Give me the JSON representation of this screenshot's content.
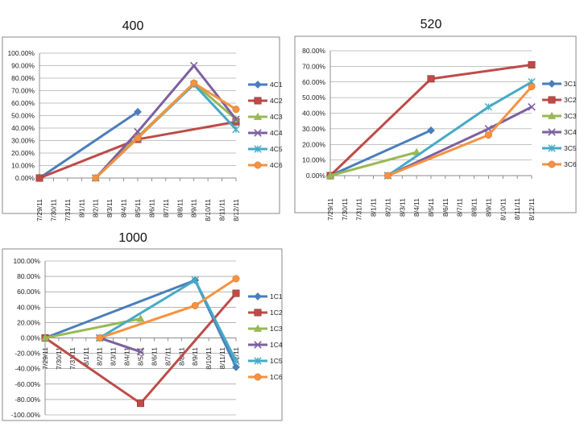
{
  "chart_data": [
    {
      "type": "line",
      "title": "400",
      "categories": [
        "7/29/11",
        "7/30/11",
        "7/31/11",
        "8/1/11",
        "8/2/11",
        "8/3/11",
        "8/4/11",
        "8/5/11",
        "8/6/11",
        "8/7/11",
        "8/8/11",
        "8/9/11",
        "8/10/11",
        "8/11/11",
        "8/12/11"
      ],
      "ylim": [
        0,
        100
      ],
      "ytick_step": 10,
      "ytick_format": "percent2",
      "grid": true,
      "legend_position": "right",
      "series": [
        {
          "name": "4C1",
          "color": "#4a7ebb",
          "marker": "diamond",
          "points": [
            [
              "7/29/11",
              0
            ],
            [
              "8/5/11",
              53
            ]
          ]
        },
        {
          "name": "4C2",
          "color": "#be4b48",
          "marker": "square",
          "points": [
            [
              "7/29/11",
              0
            ],
            [
              "8/5/11",
              31
            ],
            [
              "8/12/11",
              45
            ]
          ]
        },
        {
          "name": "4C3",
          "color": "#98b954",
          "marker": "triangle",
          "points": [
            [
              "8/2/11",
              0
            ],
            [
              "8/5/11",
              33
            ],
            [
              "8/9/11",
              76
            ],
            [
              "8/12/11",
              47
            ]
          ]
        },
        {
          "name": "4C4",
          "color": "#7d60a0",
          "marker": "x",
          "points": [
            [
              "8/2/11",
              0
            ],
            [
              "8/5/11",
              37
            ],
            [
              "8/9/11",
              90
            ],
            [
              "8/12/11",
              47
            ]
          ]
        },
        {
          "name": "4C5",
          "color": "#46aac5",
          "marker": "star",
          "points": [
            [
              "8/2/11",
              0
            ],
            [
              "8/5/11",
              32
            ],
            [
              "8/9/11",
              75
            ],
            [
              "8/12/11",
              39
            ]
          ]
        },
        {
          "name": "4C6",
          "color": "#f69240",
          "marker": "circle",
          "points": [
            [
              "8/2/11",
              0
            ],
            [
              "8/5/11",
              32
            ],
            [
              "8/9/11",
              76
            ],
            [
              "8/12/11",
              55
            ]
          ]
        }
      ]
    },
    {
      "type": "line",
      "title": "520",
      "categories": [
        "7/29/11",
        "7/30/11",
        "7/31/11",
        "8/1/11",
        "8/2/11",
        "8/3/11",
        "8/4/11",
        "8/5/11",
        "8/6/11",
        "8/7/11",
        "8/8/11",
        "8/9/11",
        "8/10/11",
        "8/11/11",
        "8/12/11"
      ],
      "ylim": [
        0,
        80
      ],
      "ytick_step": 10,
      "ytick_format": "percent2",
      "grid": true,
      "legend_position": "right",
      "series": [
        {
          "name": "3C1",
          "color": "#4a7ebb",
          "marker": "diamond",
          "points": [
            [
              "7/29/11",
              0
            ],
            [
              "8/5/11",
              29
            ]
          ]
        },
        {
          "name": "3C2",
          "color": "#be4b48",
          "marker": "square",
          "points": [
            [
              "7/29/11",
              0
            ],
            [
              "8/5/11",
              62
            ],
            [
              "8/12/11",
              71
            ]
          ]
        },
        {
          "name": "3C3",
          "color": "#98b954",
          "marker": "triangle",
          "points": [
            [
              "7/29/11",
              0
            ],
            [
              "8/4/11",
              15
            ]
          ]
        },
        {
          "name": "3C4",
          "color": "#7d60a0",
          "marker": "x",
          "points": [
            [
              "8/2/11",
              0
            ],
            [
              "8/9/11",
              30
            ],
            [
              "8/12/11",
              44
            ]
          ]
        },
        {
          "name": "3C5",
          "color": "#46aac5",
          "marker": "star",
          "points": [
            [
              "8/2/11",
              0
            ],
            [
              "8/9/11",
              44
            ],
            [
              "8/12/11",
              60
            ]
          ]
        },
        {
          "name": "3C6",
          "color": "#f69240",
          "marker": "circle",
          "points": [
            [
              "8/2/11",
              0
            ],
            [
              "8/9/11",
              26
            ],
            [
              "8/12/11",
              57
            ]
          ]
        }
      ]
    },
    {
      "type": "line",
      "title": "1000",
      "categories": [
        "7/29/11",
        "7/30/11",
        "7/31/11",
        "8/1/11",
        "8/2/11",
        "8/3/11",
        "8/4/11",
        "8/5/11",
        "8/6/11",
        "8/7/11",
        "8/8/11",
        "8/9/11",
        "8/10/11",
        "8/11/11",
        "8/12/11"
      ],
      "ylim": [
        -100,
        100
      ],
      "ytick_step": 20,
      "ytick_format": "percent2",
      "grid": true,
      "legend_position": "right",
      "series": [
        {
          "name": "1C1",
          "color": "#4a7ebb",
          "marker": "diamond",
          "points": [
            [
              "7/29/11",
              0
            ],
            [
              "8/9/11",
              75
            ],
            [
              "8/12/11",
              -38
            ]
          ]
        },
        {
          "name": "1C2",
          "color": "#be4b48",
          "marker": "square",
          "points": [
            [
              "7/29/11",
              0
            ],
            [
              "8/5/11",
              -85
            ],
            [
              "8/12/11",
              58
            ]
          ]
        },
        {
          "name": "1C3",
          "color": "#98b954",
          "marker": "triangle",
          "points": [
            [
              "7/29/11",
              0
            ],
            [
              "8/5/11",
              25
            ]
          ]
        },
        {
          "name": "1C4",
          "color": "#7d60a0",
          "marker": "x",
          "points": [
            [
              "8/2/11",
              0
            ],
            [
              "8/5/11",
              -18
            ]
          ]
        },
        {
          "name": "1C5",
          "color": "#46aac5",
          "marker": "star",
          "points": [
            [
              "8/2/11",
              0
            ],
            [
              "8/9/11",
              75
            ],
            [
              "8/12/11",
              -30
            ]
          ]
        },
        {
          "name": "1C6",
          "color": "#f69240",
          "marker": "circle",
          "points": [
            [
              "8/2/11",
              0
            ],
            [
              "8/9/11",
              42
            ],
            [
              "8/12/11",
              77
            ]
          ]
        }
      ]
    }
  ]
}
